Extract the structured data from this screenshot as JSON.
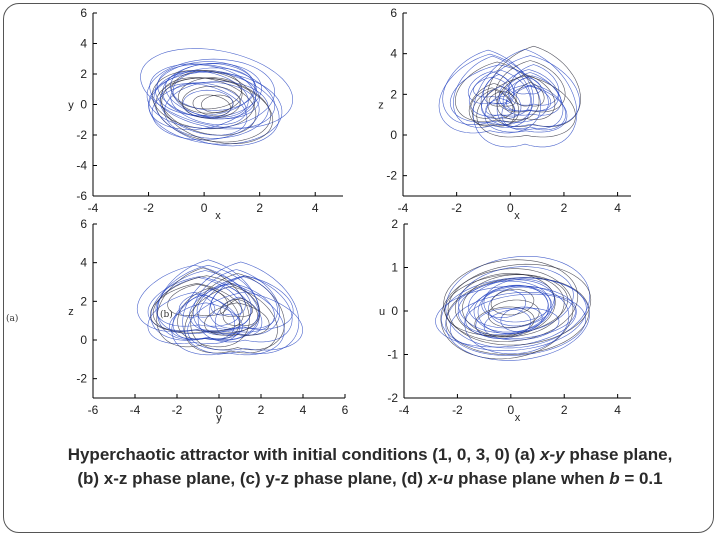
{
  "colors": {
    "trajectory": "#1f3fbf",
    "trajectory_dark": "#2b2b3a",
    "axis": "#000000"
  },
  "caption": {
    "part1": "Hyperchaotic attractor with initial conditions (1, 0, 3, 0) (a) ",
    "v1": "x-y",
    "part2": " phase plane, (b) x-z phase plane, (c) y-z phase plane, (d) ",
    "v2": "x-u",
    "part3": " phase plane when ",
    "v3": "b",
    "part4": " = 0.1"
  },
  "chart_data": [
    {
      "type": "line",
      "panel": "a",
      "title": "",
      "xlabel": "x",
      "ylabel": "y",
      "xlim": [
        -4,
        5
      ],
      "ylim": [
        -6,
        6
      ],
      "xticks": [
        "-4",
        "-2",
        "0",
        "2",
        "4"
      ],
      "yticks": [
        "-6",
        "-4",
        "-2",
        "0",
        "2",
        "4",
        "6"
      ],
      "series": [
        {
          "name": "trajectory",
          "center": [
            0.2,
            0.4
          ],
          "spread": [
            2.4,
            3.4
          ],
          "tilt": 0.75,
          "loops": 26,
          "dual_lobe": false
        }
      ]
    },
    {
      "type": "line",
      "panel": "b",
      "title": "",
      "xlabel": "x",
      "ylabel": "z",
      "xlim": [
        -4,
        4.5
      ],
      "ylim": [
        -3,
        6
      ],
      "xticks": [
        "-4",
        "-2",
        "0",
        "2",
        "4"
      ],
      "yticks": [
        "-2",
        "0",
        "2",
        "4",
        "6"
      ],
      "series": [
        {
          "name": "trajectory",
          "center": [
            0.0,
            1.9
          ],
          "spread": [
            2.6,
            2.4
          ],
          "tilt": 0.0,
          "loops": 30,
          "dual_lobe": true
        }
      ]
    },
    {
      "type": "line",
      "panel": "c",
      "title": "",
      "xlabel": "y",
      "ylabel": "z",
      "xlim": [
        -6,
        6
      ],
      "ylim": [
        -3,
        6
      ],
      "xticks": [
        "-6",
        "-4",
        "-2",
        "0",
        "2",
        "4",
        "6"
      ],
      "yticks": [
        "-2",
        "0",
        "2",
        "4",
        "6"
      ],
      "series": [
        {
          "name": "trajectory",
          "center": [
            0.0,
            1.6
          ],
          "spread": [
            3.8,
            2.6
          ],
          "tilt": 0.0,
          "loops": 30,
          "dual_lobe": true
        }
      ]
    },
    {
      "type": "line",
      "panel": "d",
      "title": "",
      "xlabel": "x",
      "ylabel": "u",
      "xlim": [
        -4,
        4.5
      ],
      "ylim": [
        -2,
        2
      ],
      "xticks": [
        "-4",
        "-2",
        "0",
        "2",
        "4"
      ],
      "yticks": [
        "-2",
        "-1",
        "0",
        "1",
        "2"
      ],
      "series": [
        {
          "name": "trajectory",
          "center": [
            0.0,
            0.0
          ],
          "spread": [
            3.0,
            1.3
          ],
          "tilt": 0.05,
          "loops": 28,
          "dual_lobe": false
        }
      ]
    }
  ],
  "panel_tags": {
    "left": "(a)",
    "inner": "(b)"
  }
}
